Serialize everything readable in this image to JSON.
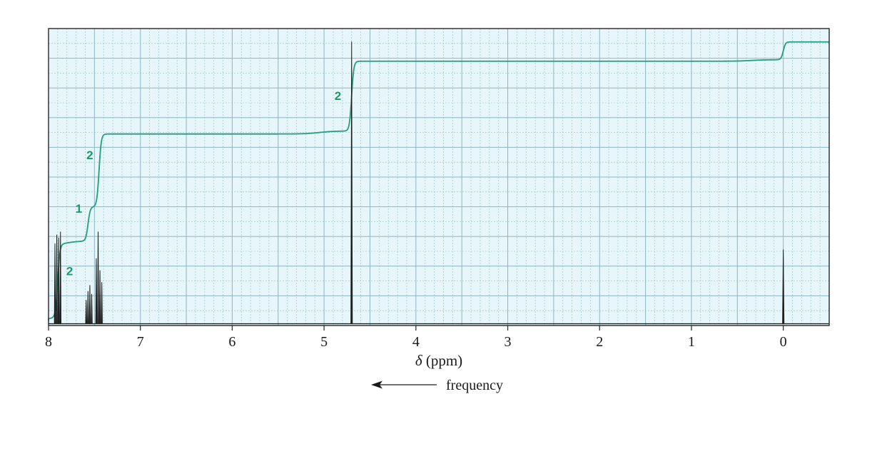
{
  "chart_data": {
    "type": "line",
    "xlabel_symbol": "δ",
    "xlabel_unit": "(ppm)",
    "xlim": [
      8,
      -0.5
    ],
    "ylim": [
      0,
      1
    ],
    "x_reversed": true,
    "x_ticks": [
      8,
      7,
      6,
      5,
      4,
      3,
      2,
      1,
      0
    ],
    "x_tick_labels": [
      "8",
      "7",
      "6",
      "5",
      "4",
      "3",
      "2",
      "1",
      "0"
    ],
    "grid": true,
    "annotation_arrow_text": "frequency",
    "series": [
      {
        "kind": "spectrum",
        "baseline": 0.006,
        "peaks": [
          {
            "x": 7.93,
            "h": 0.27,
            "w": 0.006
          },
          {
            "x": 7.91,
            "h": 0.3,
            "w": 0.006
          },
          {
            "x": 7.89,
            "h": 0.29,
            "w": 0.006
          },
          {
            "x": 7.87,
            "h": 0.31,
            "w": 0.006
          },
          {
            "x": 7.59,
            "h": 0.08,
            "w": 0.006
          },
          {
            "x": 7.57,
            "h": 0.11,
            "w": 0.006
          },
          {
            "x": 7.55,
            "h": 0.13,
            "w": 0.006
          },
          {
            "x": 7.53,
            "h": 0.1,
            "w": 0.006
          },
          {
            "x": 7.48,
            "h": 0.22,
            "w": 0.006
          },
          {
            "x": 7.46,
            "h": 0.31,
            "w": 0.006
          },
          {
            "x": 7.44,
            "h": 0.18,
            "w": 0.006
          },
          {
            "x": 7.42,
            "h": 0.14,
            "w": 0.006
          },
          {
            "x": 4.7,
            "h": 0.95,
            "w": 0.008
          },
          {
            "x": 0.0,
            "h": 0.25,
            "w": 0.008
          }
        ]
      },
      {
        "kind": "integral",
        "steps": [
          {
            "x": 7.9,
            "from": 0.02,
            "to": 0.265
          },
          {
            "x": 7.57,
            "from": 0.275,
            "to": 0.39
          },
          {
            "x": 7.45,
            "from": 0.4,
            "to": 0.645
          },
          {
            "x": 4.7,
            "from": 0.655,
            "to": 0.89
          },
          {
            "x": 0.0,
            "from": 0.895,
            "to": 0.955
          }
        ],
        "start_level": 0.015
      }
    ],
    "integration_labels": [
      {
        "text": "2",
        "x": 7.77,
        "y": 0.17
      },
      {
        "text": "1",
        "x": 7.67,
        "y": 0.38
      },
      {
        "text": "2",
        "x": 7.55,
        "y": 0.56
      },
      {
        "text": "2",
        "x": 4.85,
        "y": 0.76
      }
    ],
    "colors": {
      "grid_background": "#e6f6fa",
      "grid_major": "#8fb6c3",
      "grid_minor": "#a9cad4",
      "spectrum": "#1e1e1e",
      "integral": "#21a07c",
      "integral_label": "#1a9b6c",
      "frame": "#333333"
    }
  }
}
